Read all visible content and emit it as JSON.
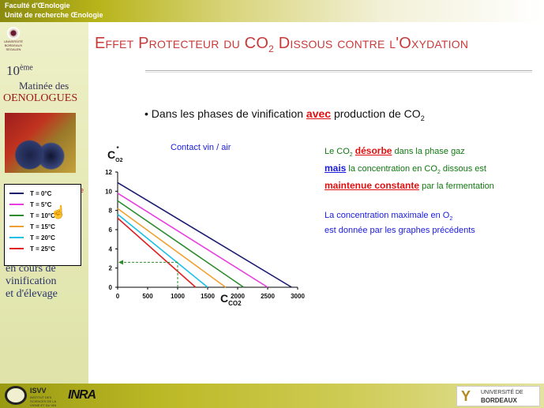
{
  "header": {
    "faculty": "Faculté d'Œnologie",
    "unit": "Unité de recherche Œnologie"
  },
  "sidebar": {
    "logo_text": "UNIVERSITÉ BORDEAUX SEGALEN",
    "edition_number": "10",
    "edition_suffix": "ème",
    "matinee": "Matinée des",
    "oenologues": "OENOLOGUES",
    "subtitle_red_fragment": "e",
    "subtitle_lines": [
      "en cours de",
      "vinification",
      "et d'élevage"
    ]
  },
  "slide": {
    "title_part1": "Effet Protecteur du CO",
    "title_sub": "2",
    "title_part2": " Dissous contre l'Oxydation",
    "bullet_prefix": "• Dans les phases de vinification ",
    "bullet_emph": "avec",
    "bullet_suffix": " production de CO",
    "bullet_sub": "2",
    "right_block_1": {
      "line1_a": "Le CO",
      "line1_sub": "2",
      "line1_emph": "désorbe",
      "line1_b": " dans la phase gaz",
      "line2_emph": "mais",
      "line2_b": " la concentration en CO",
      "line2_sub": "2",
      "line2_c": " dissous est",
      "line3_emph": "maintenue constante",
      "line3_b": " par la fermentation"
    },
    "right_block_2": {
      "line1_a": "La concentration maximale en O",
      "line1_sub": "2",
      "line2": "est donnée par les graphes précédents"
    }
  },
  "chart_data": {
    "type": "line",
    "subtitle": "Contact vin / air",
    "ylabel": "C",
    "ylabel_sub": "O2",
    "ylabel_sup": "*",
    "xlabel": "C",
    "xlabel_sub": "CO2",
    "xlim": [
      0,
      3000
    ],
    "ylim": [
      0,
      12
    ],
    "x_ticks": [
      0,
      500,
      1000,
      1500,
      2000,
      2500,
      3000
    ],
    "y_ticks": [
      0,
      2,
      4,
      6,
      8,
      10,
      12
    ],
    "grid": false,
    "legend_position": "left, outside plot",
    "series": [
      {
        "name": "T = 0°C",
        "color": "#1b1b6e",
        "x": [
          0,
          2900
        ],
        "y": [
          10.9,
          0
        ]
      },
      {
        "name": "T = 5°C",
        "color": "#e83ce0",
        "x": [
          0,
          2500
        ],
        "y": [
          9.8,
          0
        ]
      },
      {
        "name": "T = 10°C",
        "color": "#2e8b2e",
        "x": [
          0,
          2100
        ],
        "y": [
          9.0,
          0
        ]
      },
      {
        "name": "T = 15°C",
        "color": "#f0a030",
        "x": [
          0,
          1800
        ],
        "y": [
          8.2,
          0
        ]
      },
      {
        "name": "T = 20°C",
        "color": "#18c0e8",
        "x": [
          0,
          1500
        ],
        "y": [
          7.6,
          0
        ]
      },
      {
        "name": "T = 25°C",
        "color": "#e02020",
        "x": [
          0,
          1300
        ],
        "y": [
          7.2,
          0
        ]
      }
    ],
    "annotation": {
      "type": "dashed-arrow",
      "color": "#2e8b2e",
      "x": 1000,
      "y": 2.6
    }
  },
  "footer": {
    "isvv": "ISVV",
    "isvv_sub": "INSTITUT DES SCIENCES DE LA VIGNE ET DU VIN BORDEAUX AQUITAINE",
    "inra": "INRA",
    "univ_line1": "UNIVERSITÉ DE",
    "univ_line2": "BORDEAUX",
    "univ_logo_glyph": "Y"
  }
}
